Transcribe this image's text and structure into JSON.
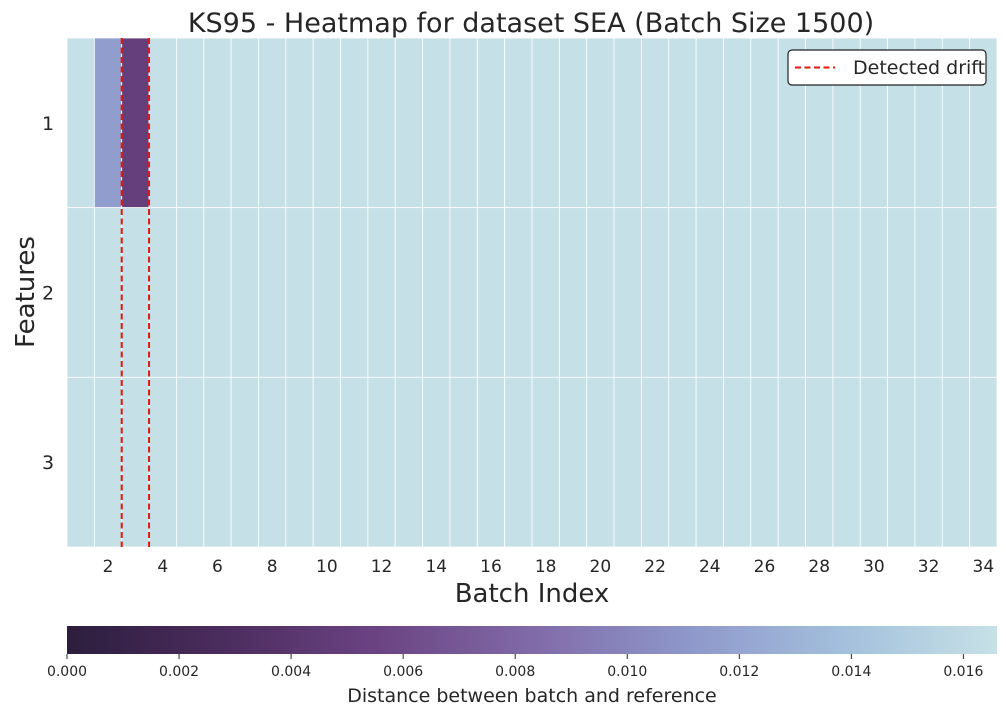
{
  "chart_data": {
    "type": "heatmap",
    "title": "KS95 - Heatmap for dataset SEA (Batch Size 1500)",
    "xlabel": "Batch Index",
    "ylabel": "Features",
    "x": [
      1,
      2,
      3,
      4,
      5,
      6,
      7,
      8,
      9,
      10,
      11,
      12,
      13,
      14,
      15,
      16,
      17,
      18,
      19,
      20,
      21,
      22,
      23,
      24,
      25,
      26,
      27,
      28,
      29,
      30,
      31,
      32,
      33,
      34
    ],
    "x_tick_labels": [
      "2",
      "4",
      "6",
      "8",
      "10",
      "12",
      "14",
      "16",
      "18",
      "20",
      "22",
      "24",
      "26",
      "28",
      "30",
      "32",
      "34"
    ],
    "y_tick_labels": [
      "1",
      "2",
      "3"
    ],
    "values": [
      [
        0.0165,
        0.0115,
        0.005,
        0.0165,
        0.0165,
        0.0165,
        0.0165,
        0.0165,
        0.0165,
        0.0165,
        0.0165,
        0.0165,
        0.0165,
        0.0165,
        0.0165,
        0.0165,
        0.0165,
        0.0165,
        0.0165,
        0.0165,
        0.0165,
        0.0165,
        0.0165,
        0.0165,
        0.0165,
        0.0165,
        0.0165,
        0.0165,
        0.0165,
        0.0165,
        0.0165,
        0.0165,
        0.0165,
        0.0165
      ],
      [
        0.0165,
        0.0165,
        0.0165,
        0.0165,
        0.0165,
        0.0165,
        0.0165,
        0.0165,
        0.0165,
        0.0165,
        0.0165,
        0.0165,
        0.0165,
        0.0165,
        0.0165,
        0.0165,
        0.0165,
        0.0165,
        0.0165,
        0.0165,
        0.0165,
        0.0165,
        0.0165,
        0.0165,
        0.0165,
        0.0165,
        0.0165,
        0.0165,
        0.0165,
        0.0165,
        0.0165,
        0.0165,
        0.0165,
        0.0165
      ],
      [
        0.0165,
        0.0165,
        0.0165,
        0.0165,
        0.0165,
        0.0165,
        0.0165,
        0.0165,
        0.0165,
        0.0165,
        0.0165,
        0.0165,
        0.0165,
        0.0165,
        0.0165,
        0.0165,
        0.0165,
        0.0165,
        0.0165,
        0.0165,
        0.0165,
        0.0165,
        0.0165,
        0.0165,
        0.0165,
        0.0165,
        0.0165,
        0.0165,
        0.0165,
        0.0165,
        0.0165,
        0.0165,
        0.0165,
        0.0165
      ]
    ],
    "detected_drift": [
      2.5,
      3.5
    ],
    "legend": {
      "label": "Detected drift",
      "placement": "top-right",
      "color": "#e8150f"
    },
    "colorbar": {
      "label": "Distance between batch and reference",
      "min": 0.0,
      "max": 0.0166,
      "ticks": [
        0.0,
        0.002,
        0.004,
        0.006,
        0.008,
        0.01,
        0.012,
        0.014,
        0.016
      ],
      "tick_labels": [
        "0.000",
        "0.002",
        "0.004",
        "0.006",
        "0.008",
        "0.010",
        "0.012",
        "0.014",
        "0.016"
      ],
      "colormap": [
        "#2c1e3d",
        "#4b2c5e",
        "#6b4382",
        "#806aa8",
        "#8e97ca",
        "#a3bfdc",
        "#c6e1e6"
      ]
    },
    "grid": true
  }
}
